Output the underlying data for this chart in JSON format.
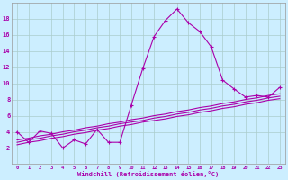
{
  "x_values": [
    0,
    1,
    2,
    3,
    4,
    5,
    6,
    7,
    8,
    9,
    10,
    11,
    12,
    13,
    14,
    15,
    16,
    17,
    18,
    19,
    20,
    21,
    22,
    23
  ],
  "main_y": [
    4,
    2.7,
    4.1,
    3.8,
    2.0,
    3.0,
    2.5,
    4.3,
    2.7,
    2.7,
    7.3,
    11.8,
    15.8,
    17.8,
    19.2,
    17.5,
    16.4,
    14.5,
    10.4,
    9.3,
    8.3,
    8.5,
    8.3,
    9.5
  ],
  "line1_y": [
    3.0,
    3.2,
    3.5,
    3.7,
    4.0,
    4.2,
    4.5,
    4.7,
    5.0,
    5.2,
    5.5,
    5.7,
    6.0,
    6.2,
    6.5,
    6.7,
    7.0,
    7.2,
    7.5,
    7.7,
    8.0,
    8.2,
    8.5,
    8.7
  ],
  "line2_y": [
    2.7,
    3.0,
    3.2,
    3.5,
    3.7,
    4.0,
    4.2,
    4.5,
    4.7,
    5.0,
    5.2,
    5.4,
    5.7,
    5.9,
    6.2,
    6.4,
    6.7,
    6.9,
    7.2,
    7.4,
    7.7,
    7.9,
    8.2,
    8.4
  ],
  "line3_y": [
    2.4,
    2.7,
    2.9,
    3.2,
    3.4,
    3.7,
    3.9,
    4.2,
    4.4,
    4.7,
    4.9,
    5.2,
    5.4,
    5.6,
    5.9,
    6.1,
    6.4,
    6.6,
    6.9,
    7.1,
    7.4,
    7.6,
    7.9,
    8.1
  ],
  "bg_color": "#cceeff",
  "line_color": "#aa00aa",
  "grid_color": "#aacccc",
  "xlabel": "Windchill (Refroidissement éolien,°C)",
  "ylim": [
    0,
    20
  ],
  "xlim": [
    -0.5,
    23.5
  ],
  "yticks": [
    2,
    4,
    6,
    8,
    10,
    12,
    14,
    16,
    18
  ],
  "xticks": [
    0,
    1,
    2,
    3,
    4,
    5,
    6,
    7,
    8,
    9,
    10,
    11,
    12,
    13,
    14,
    15,
    16,
    17,
    18,
    19,
    20,
    21,
    22,
    23
  ]
}
